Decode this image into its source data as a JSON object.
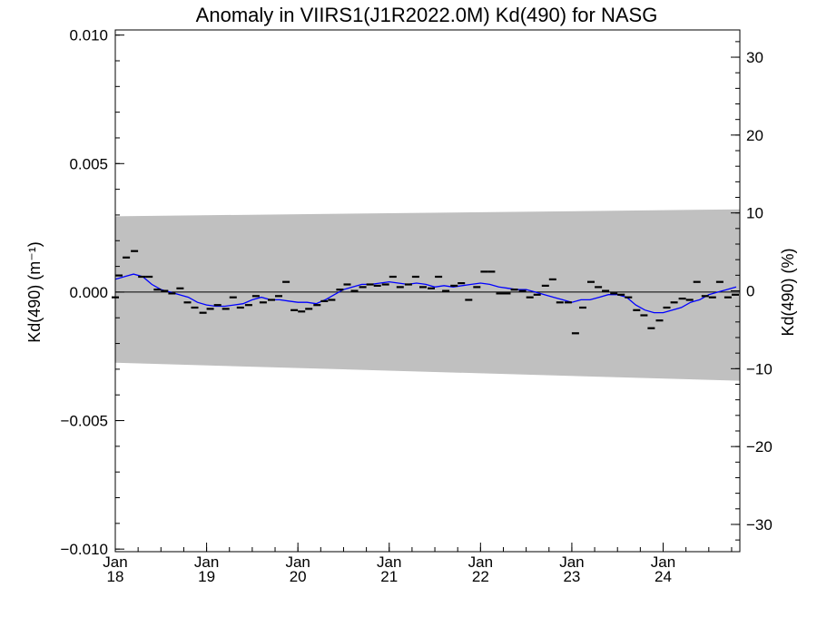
{
  "chart_data": {
    "type": "scatter",
    "title": "Anomaly in VIIRS1(J1R2022.0M) Kd(490) for NASG",
    "ylabel_left": "Kd(490) (m⁻¹)",
    "ylabel_right": "Kd(490) (%)",
    "xlim": [
      2018.0,
      2024.84
    ],
    "ylim_left": [
      -0.0101,
      0.0102
    ],
    "ylim_right": [
      -33.5,
      33.5
    ],
    "x_ticks": [
      {
        "value": 2018,
        "month": "Jan",
        "year": "18"
      },
      {
        "value": 2019,
        "month": "Jan",
        "year": "19"
      },
      {
        "value": 2020,
        "month": "Jan",
        "year": "20"
      },
      {
        "value": 2021,
        "month": "Jan",
        "year": "21"
      },
      {
        "value": 2022,
        "month": "Jan",
        "year": "22"
      },
      {
        "value": 2023,
        "month": "Jan",
        "year": "23"
      },
      {
        "value": 2024,
        "month": "Jan",
        "year": "24"
      }
    ],
    "y_ticks_left": [
      {
        "value": 0.01,
        "label": "0.010"
      },
      {
        "value": 0.005,
        "label": "0.005"
      },
      {
        "value": 0.0,
        "label": "0.000"
      },
      {
        "value": -0.005,
        "label": "−0.005"
      },
      {
        "value": -0.01,
        "label": "−0.010"
      }
    ],
    "y_ticks_right": [
      {
        "value": 30,
        "label": "30"
      },
      {
        "value": 20,
        "label": "20"
      },
      {
        "value": 10,
        "label": "10"
      },
      {
        "value": 0,
        "label": "0"
      },
      {
        "value": -10,
        "label": "−10"
      },
      {
        "value": -20,
        "label": "−20"
      },
      {
        "value": -30,
        "label": "−30"
      }
    ],
    "band": {
      "x": [
        2018.0,
        2024.84
      ],
      "upper": [
        0.00295,
        0.00322
      ],
      "lower": [
        -0.00275,
        -0.00345
      ],
      "color": "#c0c0c0"
    },
    "zero_line_color": "#000000",
    "monthly_points": {
      "color": "#000000",
      "x": [
        2018.0,
        2018.04,
        2018.12,
        2018.21,
        2018.29,
        2018.37,
        2018.46,
        2018.54,
        2018.62,
        2018.71,
        2018.79,
        2018.87,
        2018.96,
        2019.04,
        2019.12,
        2019.21,
        2019.29,
        2019.37,
        2019.46,
        2019.54,
        2019.62,
        2019.71,
        2019.79,
        2019.87,
        2019.96,
        2020.04,
        2020.12,
        2020.21,
        2020.29,
        2020.37,
        2020.46,
        2020.54,
        2020.62,
        2020.71,
        2020.79,
        2020.87,
        2020.96,
        2021.04,
        2021.12,
        2021.21,
        2021.29,
        2021.37,
        2021.46,
        2021.54,
        2021.62,
        2021.71,
        2021.79,
        2021.87,
        2021.96,
        2022.04,
        2022.12,
        2022.21,
        2022.29,
        2022.37,
        2022.46,
        2022.54,
        2022.62,
        2022.71,
        2022.79,
        2022.87,
        2022.96,
        2023.04,
        2023.12,
        2023.21,
        2023.29,
        2023.37,
        2023.46,
        2023.54,
        2023.62,
        2023.71,
        2023.79,
        2023.87,
        2023.96,
        2024.04,
        2024.12,
        2024.21,
        2024.29,
        2024.37,
        2024.46,
        2024.54,
        2024.62,
        2024.71,
        2024.79
      ],
      "y": [
        -0.0002,
        0.00065,
        0.00135,
        0.0016,
        0.0006,
        0.0006,
        0.0001,
        5e-05,
        -5e-05,
        0.00015,
        -0.0004,
        -0.0006,
        -0.0008,
        -0.00065,
        -0.0005,
        -0.00065,
        -0.0002,
        -0.0006,
        -0.0005,
        -0.00015,
        -0.0004,
        -0.0003,
        -0.00015,
        0.0004,
        -0.0007,
        -0.00075,
        -0.00065,
        -0.0005,
        -0.00035,
        -0.0003,
        0.0001,
        0.0003,
        5e-05,
        0.0002,
        0.0003,
        0.00025,
        0.0003,
        0.0006,
        0.0002,
        0.0003,
        0.0006,
        0.0002,
        0.00015,
        0.0006,
        5e-05,
        0.00025,
        0.00035,
        -0.0003,
        0.0002,
        0.0008,
        0.0008,
        -5e-05,
        -5e-05,
        0.0001,
        5e-05,
        -0.0002,
        -0.0001,
        0.00025,
        0.0005,
        -0.0004,
        -0.0004,
        -0.0016,
        -0.0006,
        0.0004,
        0.0002,
        5e-05,
        -5e-05,
        -0.0001,
        -0.0002,
        -0.0007,
        -0.0009,
        -0.0014,
        -0.0011,
        -0.0006,
        -0.0004,
        -0.00025,
        -0.0003,
        0.0004,
        -0.00015,
        -0.0002,
        0.0004,
        -0.0002,
        -0.0001
      ]
    },
    "smoothed_line": {
      "color": "#0000ff",
      "x": [
        2018.0,
        2018.1,
        2018.2,
        2018.3,
        2018.4,
        2018.5,
        2018.6,
        2018.7,
        2018.8,
        2018.9,
        2019.0,
        2019.1,
        2019.2,
        2019.3,
        2019.4,
        2019.5,
        2019.6,
        2019.7,
        2019.8,
        2019.9,
        2020.0,
        2020.1,
        2020.2,
        2020.3,
        2020.4,
        2020.5,
        2020.6,
        2020.7,
        2020.8,
        2020.9,
        2021.0,
        2021.1,
        2021.2,
        2021.3,
        2021.4,
        2021.5,
        2021.6,
        2021.7,
        2021.8,
        2021.9,
        2022.0,
        2022.1,
        2022.2,
        2022.3,
        2022.4,
        2022.5,
        2022.6,
        2022.7,
        2022.8,
        2022.9,
        2023.0,
        2023.1,
        2023.2,
        2023.3,
        2023.4,
        2023.5,
        2023.6,
        2023.7,
        2023.8,
        2023.9,
        2024.0,
        2024.1,
        2024.2,
        2024.3,
        2024.4,
        2024.5,
        2024.6,
        2024.7,
        2024.8
      ],
      "y": [
        0.0005,
        0.0006,
        0.0007,
        0.0006,
        0.0003,
        0.0001,
        0.0,
        -0.0001,
        -0.0002,
        -0.0004,
        -0.0005,
        -0.00055,
        -0.00055,
        -0.0005,
        -0.00045,
        -0.0003,
        -0.0002,
        -0.0003,
        -0.0003,
        -0.00035,
        -0.0004,
        -0.0004,
        -0.00045,
        -0.0003,
        -0.0001,
        0.0001,
        0.0002,
        0.0003,
        0.0003,
        0.00035,
        0.0004,
        0.00035,
        0.0003,
        0.00035,
        0.0003,
        0.0002,
        0.00025,
        0.0002,
        0.00025,
        0.0003,
        0.00035,
        0.0003,
        0.0002,
        0.00015,
        0.0001,
        0.0001,
        0.0,
        -0.0001,
        -0.0002,
        -0.0003,
        -0.0004,
        -0.0003,
        -0.0003,
        -0.0002,
        -0.0001,
        -0.0001,
        -0.0002,
        -0.0005,
        -0.0007,
        -0.0008,
        -0.0008,
        -0.0007,
        -0.0006,
        -0.0004,
        -0.0003,
        -0.0001,
        0.0,
        0.0001,
        0.0002
      ]
    }
  }
}
